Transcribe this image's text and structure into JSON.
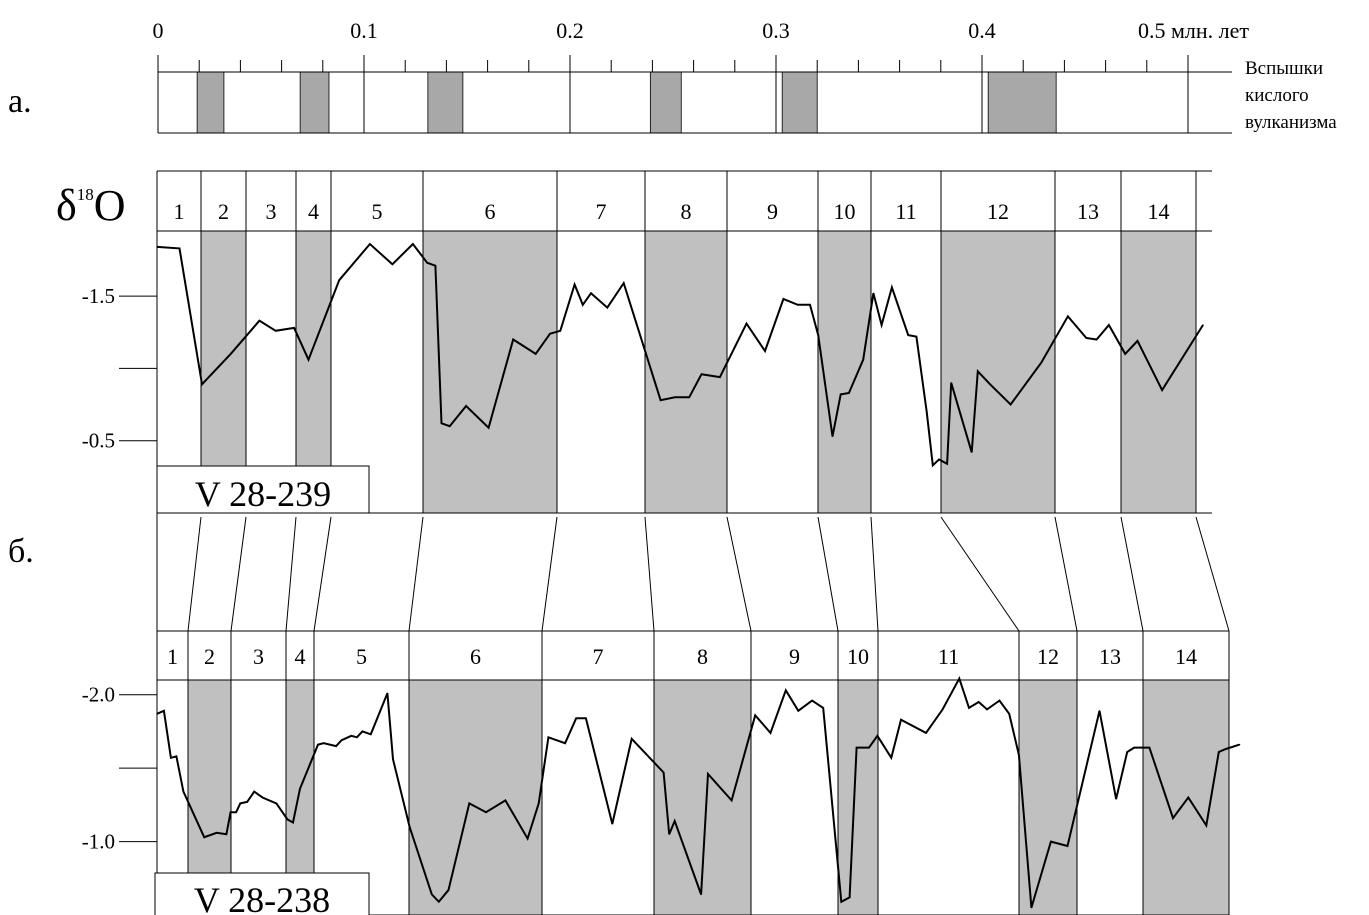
{
  "colors": {
    "band_fill": "#c0c0c0",
    "volcanic_fill": "#a8a8a8",
    "line": "#000000",
    "background": "#ffffff"
  },
  "panel_labels": {
    "a": "а.",
    "b": "б."
  },
  "chart_data": [
    {
      "type": "bar",
      "panel": "а.",
      "xlabel": "",
      "ylabel": "",
      "x_tick_labels": [
        "0",
        "0.1",
        "0.2",
        "0.3",
        "0.4",
        "0.5 млн. лет"
      ],
      "x_ticks": [
        0,
        0.1,
        0.2,
        0.3,
        0.4,
        0.5
      ],
      "xlim": [
        0,
        0.5
      ],
      "minor_ticks": [
        0.02,
        0.04,
        0.06,
        0.08,
        0.12,
        0.14,
        0.16,
        0.18,
        0.22,
        0.24,
        0.26,
        0.28,
        0.32,
        0.34,
        0.36,
        0.38,
        0.42,
        0.44,
        0.46,
        0.48
      ],
      "legend": [
        "Вспышки",
        "кислого",
        "вулканизма"
      ],
      "intervals": [
        {
          "start": 0.019,
          "end": 0.032
        },
        {
          "start": 0.069,
          "end": 0.083
        },
        {
          "start": 0.131,
          "end": 0.148
        },
        {
          "start": 0.239,
          "end": 0.254
        },
        {
          "start": 0.303,
          "end": 0.32
        },
        {
          "start": 0.403,
          "end": 0.436
        }
      ]
    },
    {
      "type": "line",
      "panel": "б.",
      "core": "V 28-239",
      "ylabel": "δ18O",
      "y_tick_labels": [
        "-1.5",
        "-0.5"
      ],
      "y_ticks": [
        -1.5,
        -0.5
      ],
      "ylim": [
        -1.95,
        0.0
      ],
      "y_inverted": true,
      "stage_labels": [
        "1",
        "2",
        "3",
        "4",
        "5",
        "6",
        "7",
        "8",
        "9",
        "10",
        "11",
        "12",
        "13",
        "14"
      ],
      "shaded_stages": [
        "2",
        "4",
        "6",
        "8",
        "10",
        "12",
        "14"
      ],
      "series": [
        {
          "values": [
            [
              0,
              -1.84
            ],
            [
              0.011,
              -1.83
            ],
            [
              0.022,
              -0.89
            ],
            [
              0.036,
              -1.1
            ],
            [
              0.05,
              -1.33
            ],
            [
              0.058,
              -1.26
            ],
            [
              0.067,
              -1.28
            ],
            [
              0.074,
              -1.06
            ],
            [
              0.089,
              -1.61
            ],
            [
              0.104,
              -1.86
            ],
            [
              0.115,
              -1.72
            ],
            [
              0.125,
              -1.86
            ],
            [
              0.132,
              -1.73
            ],
            [
              0.136,
              -1.71
            ],
            [
              0.139,
              -0.62
            ],
            [
              0.143,
              -0.6
            ],
            [
              0.151,
              -0.74
            ],
            [
              0.162,
              -0.59
            ],
            [
              0.174,
              -1.2
            ],
            [
              0.185,
              -1.1
            ],
            [
              0.192,
              -1.24
            ],
            [
              0.197,
              -1.26
            ],
            [
              0.204,
              -1.58
            ],
            [
              0.208,
              -1.44
            ],
            [
              0.212,
              -1.52
            ],
            [
              0.22,
              -1.42
            ],
            [
              0.228,
              -1.59
            ],
            [
              0.246,
              -0.78
            ],
            [
              0.253,
              -0.8
            ],
            [
              0.26,
              -0.8
            ],
            [
              0.266,
              -0.96
            ],
            [
              0.275,
              -0.94
            ],
            [
              0.288,
              -1.31
            ],
            [
              0.297,
              -1.12
            ],
            [
              0.306,
              -1.48
            ],
            [
              0.313,
              -1.44
            ],
            [
              0.319,
              -1.44
            ],
            [
              0.323,
              -1.23
            ],
            [
              0.33,
              -0.53
            ],
            [
              0.334,
              -0.82
            ],
            [
              0.338,
              -0.83
            ],
            [
              0.345,
              -1.06
            ],
            [
              0.35,
              -1.52
            ],
            [
              0.354,
              -1.3
            ],
            [
              0.359,
              -1.56
            ],
            [
              0.367,
              -1.23
            ],
            [
              0.371,
              -1.22
            ],
            [
              0.376,
              -0.7
            ],
            [
              0.379,
              -0.33
            ],
            [
              0.382,
              -0.37
            ],
            [
              0.386,
              -0.34
            ],
            [
              0.388,
              -0.9
            ],
            [
              0.398,
              -0.42
            ],
            [
              0.401,
              -0.98
            ],
            [
              0.407,
              -0.89
            ],
            [
              0.417,
              -0.75
            ],
            [
              0.432,
              -1.04
            ],
            [
              0.445,
              -1.36
            ],
            [
              0.454,
              -1.21
            ],
            [
              0.459,
              -1.2
            ],
            [
              0.465,
              -1.3
            ],
            [
              0.473,
              -1.1
            ],
            [
              0.479,
              -1.19
            ],
            [
              0.491,
              -0.85
            ],
            [
              0.511,
              -1.3
            ]
          ]
        }
      ]
    },
    {
      "type": "line",
      "panel": "б.",
      "core": "V 28-238",
      "ylabel": "",
      "y_tick_labels": [
        "-2.0",
        "-1.0"
      ],
      "y_ticks": [
        -2.0,
        -1.0
      ],
      "ylim": [
        -2.1,
        -0.5
      ],
      "y_inverted": true,
      "stage_labels": [
        "1",
        "2",
        "3",
        "4",
        "5",
        "6",
        "7",
        "8",
        "9",
        "10",
        "11",
        "12",
        "13",
        "14"
      ],
      "shaded_stages": [
        "2",
        "4",
        "6",
        "8",
        "10",
        "12",
        "14"
      ],
      "series": [
        {
          "values": [
            [
              0,
              -1.87
            ],
            [
              0.005,
              -1.89
            ],
            [
              0.01,
              -1.57
            ],
            [
              0.014,
              -1.58
            ],
            [
              0.019,
              -1.34
            ],
            [
              0.034,
              -1.03
            ],
            [
              0.043,
              -1.06
            ],
            [
              0.05,
              -1.05
            ],
            [
              0.053,
              -1.2
            ],
            [
              0.057,
              -1.2
            ],
            [
              0.06,
              -1.26
            ],
            [
              0.065,
              -1.27
            ],
            [
              0.07,
              -1.34
            ],
            [
              0.076,
              -1.3
            ],
            [
              0.086,
              -1.26
            ],
            [
              0.094,
              -1.15
            ],
            [
              0.098,
              -1.13
            ],
            [
              0.103,
              -1.36
            ],
            [
              0.116,
              -1.66
            ],
            [
              0.12,
              -1.67
            ],
            [
              0.129,
              -1.65
            ],
            [
              0.133,
              -1.69
            ],
            [
              0.14,
              -1.72
            ],
            [
              0.144,
              -1.71
            ],
            [
              0.148,
              -1.75
            ],
            [
              0.154,
              -1.73
            ],
            [
              0.166,
              -2.01
            ],
            [
              0.17,
              -1.56
            ],
            [
              0.182,
              -1.1
            ],
            [
              0.198,
              -0.64
            ],
            [
              0.203,
              -0.59
            ],
            [
              0.21,
              -0.67
            ],
            [
              0.225,
              -1.26
            ],
            [
              0.237,
              -1.2
            ],
            [
              0.251,
              -1.28
            ],
            [
              0.267,
              -1.02
            ],
            [
              0.275,
              -1.26
            ],
            [
              0.282,
              -1.71
            ],
            [
              0.294,
              -1.67
            ],
            [
              0.302,
              -1.84
            ],
            [
              0.309,
              -1.84
            ],
            [
              0.328,
              -1.12
            ],
            [
              0.342,
              -1.7
            ],
            [
              0.365,
              -1.47
            ],
            [
              0.369,
              -1.05
            ],
            [
              0.373,
              -1.14
            ],
            [
              0.392,
              -0.64
            ],
            [
              0.397,
              -1.46
            ],
            [
              0.414,
              -1.28
            ],
            [
              0.431,
              -1.86
            ],
            [
              0.442,
              -1.74
            ],
            [
              0.453,
              -2.03
            ],
            [
              0.462,
              -1.89
            ],
            [
              0.472,
              -1.96
            ],
            [
              0.48,
              -1.91
            ],
            [
              0.493,
              -0.59
            ],
            [
              0.499,
              -0.62
            ],
            [
              0.504,
              -1.64
            ],
            [
              0.513,
              -1.64
            ],
            [
              0.519,
              -1.72
            ],
            [
              0.529,
              -1.57
            ],
            [
              0.536,
              -1.83
            ],
            [
              0.554,
              -1.74
            ],
            [
              0.566,
              -1.9
            ],
            [
              0.578,
              -2.11
            ],
            [
              0.585,
              -1.91
            ],
            [
              0.592,
              -1.95
            ],
            [
              0.598,
              -1.9
            ],
            [
              0.607,
              -1.96
            ],
            [
              0.614,
              -1.87
            ],
            [
              0.621,
              -1.59
            ],
            [
              0.63,
              -0.55
            ],
            [
              0.644,
              -1.0
            ],
            [
              0.656,
              -0.97
            ],
            [
              0.679,
              -1.89
            ],
            [
              0.691,
              -1.29
            ],
            [
              0.699,
              -1.61
            ],
            [
              0.704,
              -1.64
            ],
            [
              0.715,
              -1.64
            ],
            [
              0.732,
              -1.16
            ],
            [
              0.743,
              -1.3
            ],
            [
              0.756,
              -1.11
            ],
            [
              0.765,
              -1.61
            ],
            [
              0.77,
              -1.63
            ],
            [
              0.78,
              -1.66
            ]
          ]
        }
      ]
    }
  ],
  "core_labels": {
    "top": "V 28-239",
    "bottom": "V 28-238"
  }
}
